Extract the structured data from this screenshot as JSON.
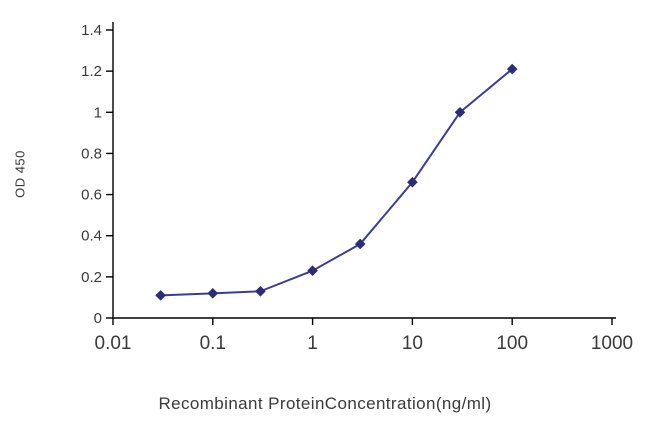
{
  "chart_data": {
    "type": "line",
    "title": "",
    "xlabel": "Recombinant ProteinConcentration(ng/ml)",
    "ylabel": "OD 450",
    "x_scale": "log",
    "xlim": [
      0.01,
      1000
    ],
    "ylim": [
      0,
      1.4
    ],
    "grid": false,
    "legend": null,
    "x": [
      0.03,
      0.1,
      0.3,
      1,
      3,
      10,
      30,
      100
    ],
    "y": [
      0.11,
      0.12,
      0.13,
      0.23,
      0.36,
      0.66,
      1.0,
      1.21
    ],
    "x_ticks": [
      {
        "value": 0.01,
        "label": "0.01"
      },
      {
        "value": 0.1,
        "label": "0.1"
      },
      {
        "value": 1,
        "label": "1"
      },
      {
        "value": 10,
        "label": "10"
      },
      {
        "value": 100,
        "label": "100"
      },
      {
        "value": 1000,
        "label": "1000"
      }
    ],
    "y_ticks": [
      {
        "value": 0,
        "label": "0"
      },
      {
        "value": 0.2,
        "label": "0.2"
      },
      {
        "value": 0.4,
        "label": "0.4"
      },
      {
        "value": 0.6,
        "label": "0.6"
      },
      {
        "value": 0.8,
        "label": "0.8"
      },
      {
        "value": 1,
        "label": "1"
      },
      {
        "value": 1.2,
        "label": "1.2"
      },
      {
        "value": 1.4,
        "label": "1.4"
      }
    ],
    "line_color": "#3c3c99",
    "marker": "diamond",
    "marker_color": "#2d2d77",
    "axis_color": "#000000",
    "text_color": "#3a3a3a"
  }
}
